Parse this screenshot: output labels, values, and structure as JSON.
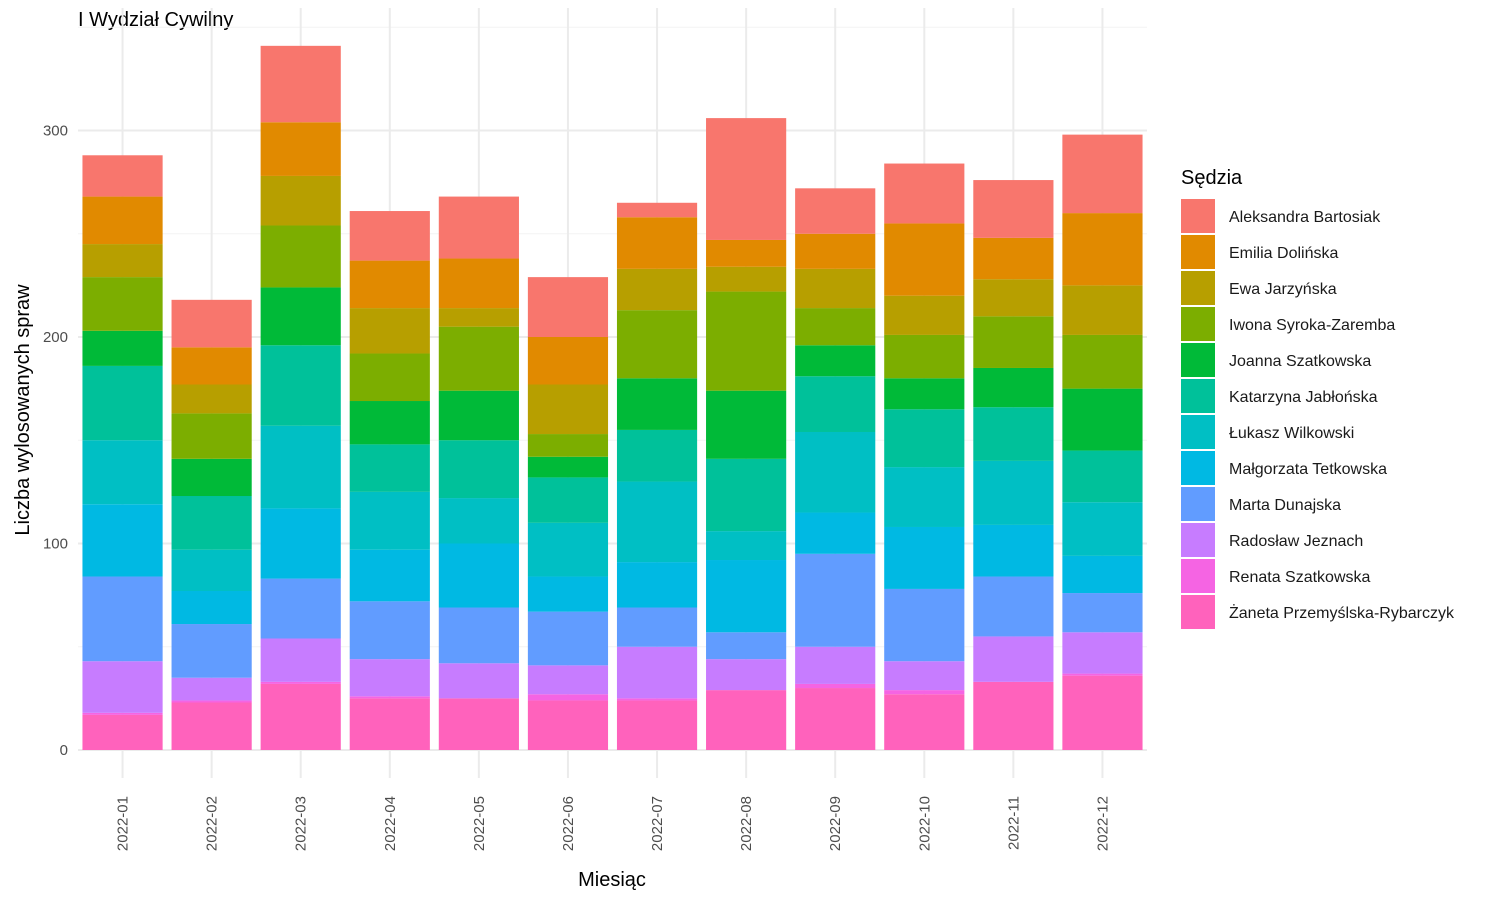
{
  "chart_data": {
    "type": "bar",
    "stacked": true,
    "title": "I Wydział Cywilny",
    "xlabel": "Miesiąc",
    "ylabel": "Liczba wylosowanych spraw",
    "ylim": [
      0,
      340
    ],
    "yticks": [
      0,
      100,
      200,
      300
    ],
    "grid": true,
    "legend_title": "Sędzia",
    "legend_position": "right",
    "categories": [
      "2022-01",
      "2022-02",
      "2022-03",
      "2022-04",
      "2022-05",
      "2022-06",
      "2022-07",
      "2022-08",
      "2022-09",
      "2022-10",
      "2022-11",
      "2022-12"
    ],
    "series": [
      {
        "name": "Żaneta Przemyślska-Rybarczyk",
        "color": "#FF62BC",
        "values": [
          17,
          23,
          32,
          25,
          25,
          24,
          24,
          29,
          30,
          27,
          33,
          36
        ]
      },
      {
        "name": "Renata Szatkowska",
        "color": "#F564E3",
        "values": [
          1,
          1,
          1,
          1,
          0,
          3,
          1,
          0,
          2,
          2,
          0,
          1
        ]
      },
      {
        "name": "Radosław Jeznach",
        "color": "#C77CFF",
        "values": [
          25,
          11,
          21,
          18,
          17,
          14,
          25,
          15,
          18,
          14,
          22,
          20
        ]
      },
      {
        "name": "Marta Dunajska",
        "color": "#619CFF",
        "values": [
          41,
          26,
          29,
          28,
          27,
          26,
          19,
          13,
          45,
          35,
          29,
          19
        ]
      },
      {
        "name": "Małgorzata Tetkowska",
        "color": "#00B9E3",
        "values": [
          35,
          16,
          34,
          25,
          31,
          17,
          22,
          35,
          20,
          30,
          25,
          18
        ]
      },
      {
        "name": "Łukasz Wilkowski",
        "color": "#00BFC4",
        "values": [
          31,
          20,
          40,
          28,
          22,
          26,
          39,
          14,
          39,
          29,
          31,
          26
        ]
      },
      {
        "name": "Katarzyna Jabłońska",
        "color": "#00C19A",
        "values": [
          36,
          26,
          39,
          23,
          28,
          22,
          25,
          35,
          27,
          28,
          26,
          25
        ]
      },
      {
        "name": "Joanna Szatkowska",
        "color": "#00BA38",
        "values": [
          17,
          18,
          28,
          21,
          24,
          10,
          25,
          33,
          15,
          15,
          19,
          30
        ]
      },
      {
        "name": "Iwona Syroka-Zaremba",
        "color": "#7CAE00",
        "values": [
          26,
          22,
          30,
          23,
          31,
          11,
          33,
          48,
          18,
          21,
          25,
          26
        ]
      },
      {
        "name": "Ewa Jarzyńska",
        "color": "#B79F00",
        "values": [
          16,
          14,
          24,
          22,
          9,
          24,
          20,
          12,
          19,
          19,
          18,
          24
        ]
      },
      {
        "name": "Emilia Dolińska",
        "color": "#E18A00",
        "values": [
          23,
          18,
          26,
          23,
          24,
          23,
          25,
          13,
          17,
          35,
          20,
          35
        ]
      },
      {
        "name": "Aleksandra Bartosiak",
        "color": "#F8766D",
        "values": [
          20,
          23,
          37,
          24,
          30,
          29,
          7,
          59,
          22,
          29,
          28,
          38
        ]
      }
    ]
  }
}
